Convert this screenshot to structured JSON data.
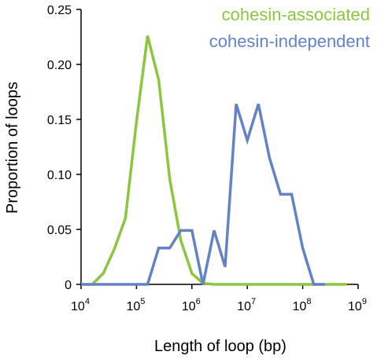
{
  "chart_data": {
    "type": "line",
    "title": "",
    "xlabel": "Length of loop (bp)",
    "ylabel": "Proportion of loops",
    "x_scale": "log10",
    "xlim_exponent": [
      4,
      9
    ],
    "x_tick_base": "10",
    "x_tick_exponents": [
      "4",
      "5",
      "6",
      "7",
      "8",
      "9"
    ],
    "ylim": [
      0,
      0.25
    ],
    "y_ticks": [
      "0",
      "0.05",
      "0.10",
      "0.15",
      "0.20",
      "0.25"
    ],
    "y_tick_values": [
      0,
      0.05,
      0.1,
      0.15,
      0.2,
      0.25
    ],
    "legend_position": "top-right",
    "series": [
      {
        "name": "cohesin-associated",
        "color": "#8cc63f",
        "x_exponent": [
          4.0,
          4.2,
          4.4,
          4.6,
          4.8,
          5.0,
          5.2,
          5.4,
          5.6,
          5.8,
          6.0,
          6.2,
          6.4,
          6.6,
          6.8,
          7.0,
          7.2,
          7.4,
          7.6,
          7.8,
          8.0,
          8.2,
          8.4,
          8.6,
          8.8
        ],
        "values": [
          0,
          0,
          0.01,
          0.032,
          0.06,
          0.148,
          0.226,
          0.186,
          0.096,
          0.04,
          0.01,
          0.001,
          0,
          0,
          0,
          0,
          0,
          0,
          0,
          0,
          0,
          0,
          0,
          0,
          0
        ]
      },
      {
        "name": "cohesin-independent",
        "color": "#6483c4",
        "x_exponent": [
          4.0,
          4.2,
          4.4,
          4.6,
          4.8,
          5.0,
          5.2,
          5.4,
          5.6,
          5.8,
          6.0,
          6.2,
          6.4,
          6.6,
          6.8,
          7.0,
          7.2,
          7.4,
          7.6,
          7.8,
          8.0,
          8.2,
          8.4
        ],
        "values": [
          0,
          0,
          0,
          0,
          0,
          0,
          0,
          0.033,
          0.033,
          0.049,
          0.049,
          0,
          0.049,
          0.016,
          0.164,
          0.131,
          0.164,
          0.115,
          0.082,
          0.082,
          0.033,
          0,
          0
        ]
      }
    ]
  }
}
